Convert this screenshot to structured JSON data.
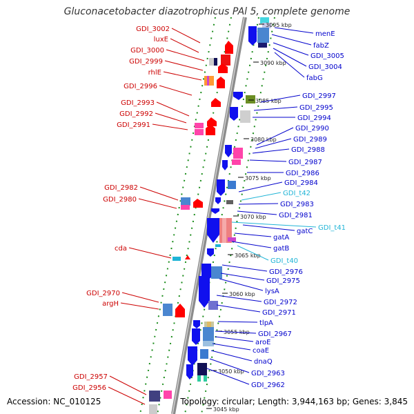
{
  "title": "Gluconacetobacter diazotrophicus PAl 5, complete genome",
  "accession_text": "Accession: NC_010125",
  "topology_text": "Topology: circular; Length: 3,944,163 bp; Genes: 3,845",
  "colors": {
    "left_label": "#cc0000",
    "right_label": "#0000cc",
    "trna_label": "#1fb4d6",
    "forward_feature": "#ff0000",
    "reverse_feature": "#1010ee",
    "backbone": "#8c8c8c",
    "dotted_track": "#1a8c1a"
  },
  "ruler_ticks": [
    "3095 kbp",
    "3090 kbp",
    "3085 kbp",
    "3080 kbp",
    "3075 kbp",
    "3070 kbp",
    "3065 kbp",
    "3060 kbp",
    "3055 kbp",
    "3050 kbp",
    "3045 kbp"
  ],
  "left_labels": [
    "GDI_3002",
    "luxE",
    "GDI_3000",
    "GDI_2999",
    "rhlE",
    "GDI_2996",
    "GDI_2993",
    "GDI_2992",
    "GDI_2991",
    "GDI_2982",
    "GDI_2980",
    "cda",
    "GDI_2970",
    "argH",
    "GDI_2957",
    "GDI_2956"
  ],
  "right_labels": [
    "menE",
    "fabZ",
    "GDI_3005",
    "GDI_3004",
    "fabG",
    "GDI_2997",
    "GDI_2995",
    "GDI_2994",
    "GDI_2990",
    "GDI_2989",
    "GDI_2988",
    "GDI_2987",
    "GDI_2986",
    "GDI_2984",
    "GDI_t42",
    "GDI_2983",
    "GDI_2981",
    "GDI_t41",
    "gatC",
    "gatA",
    "gatB",
    "GDI_t40",
    "GDI_2976",
    "GDI_2975",
    "lysA",
    "GDI_2972",
    "GDI_2971",
    "tlpA",
    "GDI_2967",
    "aroE",
    "coaE",
    "dnaQ",
    "GDI_2963",
    "GDI_2962"
  ],
  "trna_labels": [
    "GDI_t42",
    "GDI_t41",
    "GDI_t40"
  ]
}
